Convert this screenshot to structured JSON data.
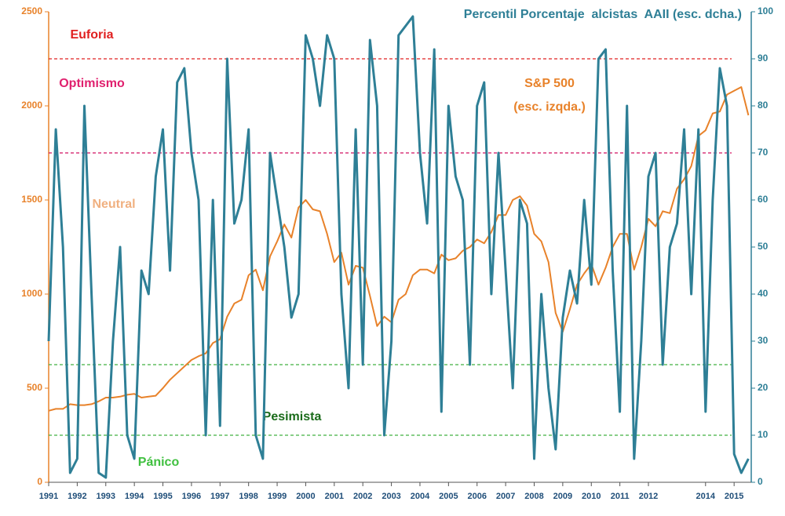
{
  "chart_data": {
    "type": "line",
    "x": [
      1991,
      1991.25,
      1991.5,
      1991.75,
      1992,
      1992.25,
      1992.5,
      1992.75,
      1993,
      1993.25,
      1993.5,
      1993.75,
      1994,
      1994.25,
      1994.5,
      1994.75,
      1995,
      1995.25,
      1995.5,
      1995.75,
      1996,
      1996.25,
      1996.5,
      1996.75,
      1997,
      1997.25,
      1997.5,
      1997.75,
      1998,
      1998.25,
      1998.5,
      1998.75,
      1999,
      1999.25,
      1999.5,
      1999.75,
      2000,
      2000.25,
      2000.5,
      2000.75,
      2001,
      2001.25,
      2001.5,
      2001.75,
      2002,
      2002.25,
      2002.5,
      2002.75,
      2003,
      2003.25,
      2003.5,
      2003.75,
      2004,
      2004.25,
      2004.5,
      2004.75,
      2005,
      2005.25,
      2005.5,
      2005.75,
      2006,
      2006.25,
      2006.5,
      2006.75,
      2007,
      2007.25,
      2007.5,
      2007.75,
      2008,
      2008.25,
      2008.5,
      2008.75,
      2009,
      2009.25,
      2009.5,
      2009.75,
      2010,
      2010.25,
      2010.5,
      2010.75,
      2011,
      2011.25,
      2011.5,
      2011.75,
      2012,
      2012.25,
      2012.5,
      2012.75,
      2013,
      2013.25,
      2013.5,
      2013.75,
      2014,
      2014.25,
      2014.5,
      2014.75,
      2015,
      2015.25,
      2015.5
    ],
    "series": [
      {
        "name": "S&P 500",
        "color": "#e8822a",
        "axis": "y",
        "values": [
          380,
          390,
          390,
          415,
          410,
          410,
          415,
          430,
          450,
          450,
          455,
          465,
          470,
          450,
          455,
          460,
          500,
          545,
          580,
          615,
          650,
          670,
          685,
          740,
          760,
          880,
          950,
          970,
          1100,
          1130,
          1020,
          1200,
          1280,
          1370,
          1300,
          1460,
          1500,
          1450,
          1440,
          1320,
          1170,
          1220,
          1050,
          1150,
          1140,
          990,
          830,
          880,
          850,
          970,
          1000,
          1100,
          1130,
          1130,
          1110,
          1210,
          1180,
          1190,
          1230,
          1250,
          1290,
          1270,
          1330,
          1420,
          1420,
          1500,
          1520,
          1470,
          1320,
          1280,
          1170,
          900,
          800,
          920,
          1050,
          1110,
          1160,
          1050,
          1140,
          1250,
          1320,
          1320,
          1130,
          1250,
          1400,
          1360,
          1440,
          1430,
          1560,
          1610,
          1680,
          1840,
          1870,
          1960,
          1970,
          2060,
          2080,
          2100,
          1950
        ]
      },
      {
        "name": "Percentil Porcentaje  alcistas  AAII (esc. dcha.)",
        "color": "#2e7f96",
        "axis": "y2",
        "values": [
          30,
          75,
          50,
          2,
          5,
          80,
          40,
          2,
          1,
          30,
          50,
          10,
          5,
          45,
          40,
          65,
          75,
          45,
          85,
          88,
          70,
          60,
          10,
          60,
          12,
          90,
          55,
          60,
          75,
          10,
          5,
          70,
          60,
          50,
          35,
          40,
          95,
          90,
          80,
          95,
          90,
          40,
          20,
          75,
          25,
          94,
          80,
          10,
          30,
          95,
          97,
          99,
          70,
          55,
          92,
          15,
          80,
          65,
          60,
          25,
          80,
          85,
          40,
          70,
          45,
          20,
          60,
          55,
          5,
          40,
          20,
          7,
          35,
          45,
          38,
          60,
          42,
          90,
          92,
          45,
          15,
          80,
          5,
          30,
          65,
          70,
          25,
          50,
          55,
          75,
          40,
          75,
          15,
          60,
          88,
          80,
          6,
          2,
          5
        ]
      }
    ],
    "series_note": "(esc. izqda.)",
    "xlim": [
      1991,
      2015.6
    ],
    "xticks": [
      1991,
      1992,
      1993,
      1994,
      1995,
      1996,
      1997,
      1998,
      1999,
      2000,
      2001,
      2002,
      2003,
      2004,
      2005,
      2006,
      2007,
      2008,
      2009,
      2010,
      2011,
      2012,
      2014,
      2015
    ],
    "ylim": [
      0,
      2500
    ],
    "yticks": [
      0,
      500,
      1000,
      1500,
      2000,
      2500
    ],
    "y2lim": [
      0,
      100
    ],
    "y2ticks": [
      0,
      10,
      20,
      30,
      40,
      50,
      60,
      70,
      80,
      90,
      100
    ],
    "reference_lines": [
      {
        "value": 90,
        "label": "Euforia",
        "color": "#e02020",
        "label_color": "#e02020"
      },
      {
        "value": 70,
        "label": "Optimismo",
        "color": "#d01060",
        "label_color": "#e0206e"
      },
      {
        "value": 25,
        "label": "Pesimista",
        "color": "#40b040",
        "label_color": "#1a6b1a"
      },
      {
        "value": 10,
        "label": "Pánico",
        "color": "#40b040",
        "label_color": "#40c040"
      }
    ],
    "annotations": [
      {
        "text": "Neutral",
        "color": "#f0b080"
      }
    ],
    "grid": false
  }
}
